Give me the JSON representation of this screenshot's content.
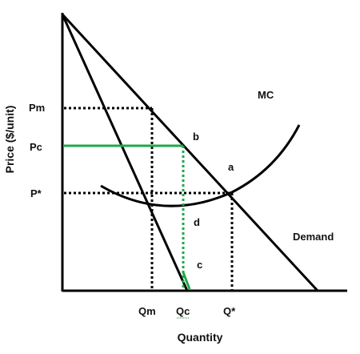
{
  "diagram": {
    "y_axis_title": "Price ($/unit)",
    "x_axis_title": "Quantity",
    "price_labels": {
      "pm": "Pm",
      "pc": "Pc",
      "pstar": "P*"
    },
    "quantity_labels": {
      "qm": "Qm",
      "qc": "Qc",
      "qstar": "Q*"
    },
    "curve_labels": {
      "mc": "MC",
      "demand": "Demand"
    },
    "point_labels": {
      "a": "a",
      "b": "b",
      "c": "c",
      "d": "d"
    },
    "colors": {
      "line": "#000000",
      "highlight": "#1fa84a"
    }
  }
}
